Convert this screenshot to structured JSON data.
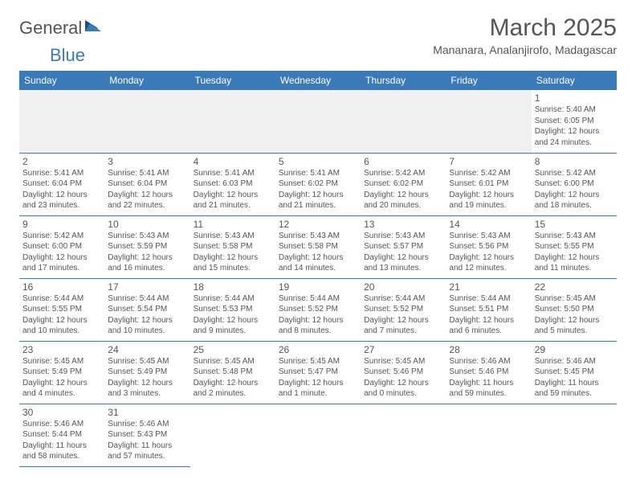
{
  "logo": {
    "text1": "General",
    "text2": "Blue"
  },
  "title": "March 2025",
  "location": "Mananara, Analanjirofo, Madagascar",
  "colors": {
    "header_bg": "#3a7ab8",
    "header_text": "#ffffff",
    "text": "#555555",
    "border": "#3a7ab8",
    "empty_bg": "#f0f0f0",
    "page_bg": "#ffffff"
  },
  "weekdays": [
    "Sunday",
    "Monday",
    "Tuesday",
    "Wednesday",
    "Thursday",
    "Friday",
    "Saturday"
  ],
  "weeks": [
    [
      null,
      null,
      null,
      null,
      null,
      null,
      {
        "n": "1",
        "sunrise": "5:40 AM",
        "sunset": "6:05 PM",
        "daylight": "12 hours and 24 minutes."
      }
    ],
    [
      {
        "n": "2",
        "sunrise": "5:41 AM",
        "sunset": "6:04 PM",
        "daylight": "12 hours and 23 minutes."
      },
      {
        "n": "3",
        "sunrise": "5:41 AM",
        "sunset": "6:04 PM",
        "daylight": "12 hours and 22 minutes."
      },
      {
        "n": "4",
        "sunrise": "5:41 AM",
        "sunset": "6:03 PM",
        "daylight": "12 hours and 21 minutes."
      },
      {
        "n": "5",
        "sunrise": "5:41 AM",
        "sunset": "6:02 PM",
        "daylight": "12 hours and 21 minutes."
      },
      {
        "n": "6",
        "sunrise": "5:42 AM",
        "sunset": "6:02 PM",
        "daylight": "12 hours and 20 minutes."
      },
      {
        "n": "7",
        "sunrise": "5:42 AM",
        "sunset": "6:01 PM",
        "daylight": "12 hours and 19 minutes."
      },
      {
        "n": "8",
        "sunrise": "5:42 AM",
        "sunset": "6:00 PM",
        "daylight": "12 hours and 18 minutes."
      }
    ],
    [
      {
        "n": "9",
        "sunrise": "5:42 AM",
        "sunset": "6:00 PM",
        "daylight": "12 hours and 17 minutes."
      },
      {
        "n": "10",
        "sunrise": "5:43 AM",
        "sunset": "5:59 PM",
        "daylight": "12 hours and 16 minutes."
      },
      {
        "n": "11",
        "sunrise": "5:43 AM",
        "sunset": "5:58 PM",
        "daylight": "12 hours and 15 minutes."
      },
      {
        "n": "12",
        "sunrise": "5:43 AM",
        "sunset": "5:58 PM",
        "daylight": "12 hours and 14 minutes."
      },
      {
        "n": "13",
        "sunrise": "5:43 AM",
        "sunset": "5:57 PM",
        "daylight": "12 hours and 13 minutes."
      },
      {
        "n": "14",
        "sunrise": "5:43 AM",
        "sunset": "5:56 PM",
        "daylight": "12 hours and 12 minutes."
      },
      {
        "n": "15",
        "sunrise": "5:43 AM",
        "sunset": "5:55 PM",
        "daylight": "12 hours and 11 minutes."
      }
    ],
    [
      {
        "n": "16",
        "sunrise": "5:44 AM",
        "sunset": "5:55 PM",
        "daylight": "12 hours and 10 minutes."
      },
      {
        "n": "17",
        "sunrise": "5:44 AM",
        "sunset": "5:54 PM",
        "daylight": "12 hours and 10 minutes."
      },
      {
        "n": "18",
        "sunrise": "5:44 AM",
        "sunset": "5:53 PM",
        "daylight": "12 hours and 9 minutes."
      },
      {
        "n": "19",
        "sunrise": "5:44 AM",
        "sunset": "5:52 PM",
        "daylight": "12 hours and 8 minutes."
      },
      {
        "n": "20",
        "sunrise": "5:44 AM",
        "sunset": "5:52 PM",
        "daylight": "12 hours and 7 minutes."
      },
      {
        "n": "21",
        "sunrise": "5:44 AM",
        "sunset": "5:51 PM",
        "daylight": "12 hours and 6 minutes."
      },
      {
        "n": "22",
        "sunrise": "5:45 AM",
        "sunset": "5:50 PM",
        "daylight": "12 hours and 5 minutes."
      }
    ],
    [
      {
        "n": "23",
        "sunrise": "5:45 AM",
        "sunset": "5:49 PM",
        "daylight": "12 hours and 4 minutes."
      },
      {
        "n": "24",
        "sunrise": "5:45 AM",
        "sunset": "5:49 PM",
        "daylight": "12 hours and 3 minutes."
      },
      {
        "n": "25",
        "sunrise": "5:45 AM",
        "sunset": "5:48 PM",
        "daylight": "12 hours and 2 minutes."
      },
      {
        "n": "26",
        "sunrise": "5:45 AM",
        "sunset": "5:47 PM",
        "daylight": "12 hours and 1 minute."
      },
      {
        "n": "27",
        "sunrise": "5:45 AM",
        "sunset": "5:46 PM",
        "daylight": "12 hours and 0 minutes."
      },
      {
        "n": "28",
        "sunrise": "5:46 AM",
        "sunset": "5:46 PM",
        "daylight": "11 hours and 59 minutes."
      },
      {
        "n": "29",
        "sunrise": "5:46 AM",
        "sunset": "5:45 PM",
        "daylight": "11 hours and 59 minutes."
      }
    ],
    [
      {
        "n": "30",
        "sunrise": "5:46 AM",
        "sunset": "5:44 PM",
        "daylight": "11 hours and 58 minutes."
      },
      {
        "n": "31",
        "sunrise": "5:46 AM",
        "sunset": "5:43 PM",
        "daylight": "11 hours and 57 minutes."
      },
      null,
      null,
      null,
      null,
      null
    ]
  ]
}
